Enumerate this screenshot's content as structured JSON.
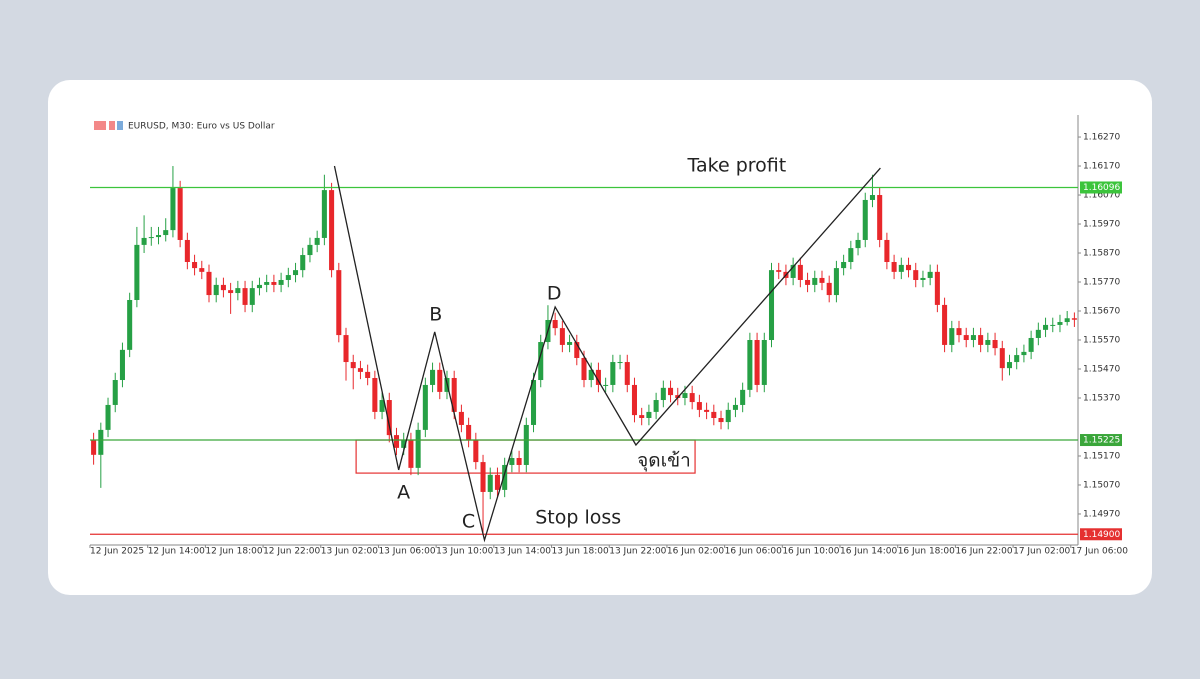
{
  "chart_data": {
    "type": "candlestick",
    "title": "EURUSD, M30:  Euro vs US Dollar",
    "categories": [
      "12 Jun 2025",
      null,
      null,
      null,
      null,
      null,
      null,
      null,
      "12 Jun 14:00",
      null,
      null,
      null,
      null,
      null,
      null,
      null,
      "12 Jun 18:00",
      null,
      null,
      null,
      null,
      null,
      null,
      null,
      "12 Jun 22:00",
      null,
      null,
      null,
      null,
      null,
      null,
      null,
      "13 Jun 02:00",
      null,
      null,
      null,
      null,
      null,
      null,
      null,
      "13 Jun 06:00",
      null,
      null,
      null,
      null,
      null,
      null,
      null,
      "13 Jun 10:00",
      null,
      null,
      null,
      null,
      null,
      null,
      null,
      "13 Jun 14:00",
      null,
      null,
      null,
      null,
      null,
      null,
      null,
      "13 Jun 18:00",
      null,
      null,
      null,
      null,
      null,
      null,
      null,
      "13 Jun 22:00",
      null,
      null,
      null,
      null,
      null,
      null,
      null,
      "16 Jun 02:00",
      null,
      null,
      null,
      null,
      null,
      null,
      null,
      "16 Jun 06:00",
      null,
      null,
      null,
      null,
      null,
      null,
      null,
      "16 Jun 10:00",
      null,
      null,
      null,
      null,
      null,
      null,
      null,
      "16 Jun 14:00",
      null,
      null,
      null,
      null,
      null,
      null,
      null,
      "16 Jun 18:00",
      null,
      null,
      null,
      null,
      null,
      null,
      null,
      "16 Jun 22:00",
      null,
      null,
      null,
      null,
      null,
      null,
      null,
      "17 Jun 02:00",
      null,
      null,
      null,
      null,
      null,
      null,
      null,
      "17 Jun 06:00"
    ],
    "open": [
      1.15225,
      1.15174,
      1.1526,
      1.15346,
      1.15432,
      1.15536,
      1.15708,
      1.15898,
      1.15922,
      1.15925,
      1.15932,
      1.15949,
      1.16094,
      1.15915,
      1.15839,
      1.15818,
      1.15805,
      1.15725,
      1.1576,
      1.15742,
      1.15732,
      1.15749,
      1.15691,
      1.15749,
      1.1576,
      1.1577,
      1.1576,
      1.15777,
      1.15794,
      1.15811,
      1.15863,
      1.15898,
      1.15922,
      1.16087,
      1.15811,
      1.15587,
      1.15494,
      1.15473,
      1.1546,
      1.15439,
      1.15322,
      1.15363,
      1.15242,
      1.15198,
      1.15225,
      1.15129,
      1.1526,
      1.15415,
      1.15467,
      1.15391,
      1.15439,
      1.15322,
      1.15277,
      1.15225,
      1.15149,
      1.15046,
      1.15105,
      1.15053,
      1.15139,
      1.15163,
      1.15139,
      1.15277,
      1.15432,
      1.15563,
      1.15639,
      1.15611,
      1.15553,
      1.15563,
      1.15508,
      1.15432,
      1.15467,
      1.15415,
      1.15415,
      1.15494,
      1.15494,
      1.15415,
      1.15311,
      1.15301,
      1.15322,
      1.15363,
      1.15405,
      1.1538,
      1.1537,
      1.15387,
      1.15356,
      1.15329,
      1.15322,
      1.15301,
      1.15287,
      1.15329,
      1.15346,
      1.15398,
      1.1557,
      1.15415,
      1.1557,
      1.15811,
      1.15805,
      1.15784,
      1.15829,
      1.15777,
      1.1576,
      1.15784,
      1.15767,
      1.15725,
      1.15818,
      1.15839,
      1.15887,
      1.15915,
      1.16053,
      1.1607,
      1.15915,
      1.15839,
      1.15805,
      1.15829,
      1.15811,
      1.15777,
      1.15784,
      1.15805,
      1.15691,
      1.15553,
      1.15611,
      1.15587,
      1.1557,
      1.15587,
      1.15553,
      1.1557,
      1.15542,
      1.15473,
      1.15494,
      1.15518,
      1.15529,
      1.15577,
      1.15605,
      1.15622,
      1.15622,
      1.15632,
      1.15645
    ],
    "high": [
      1.1525,
      1.15285,
      1.15371,
      1.15457,
      1.15561,
      1.15733,
      1.1596,
      1.16,
      1.1596,
      1.1596,
      1.1599,
      1.1617,
      1.16119,
      1.1594,
      1.15864,
      1.15843,
      1.1583,
      1.15785,
      1.15785,
      1.15767,
      1.15774,
      1.15774,
      1.15774,
      1.15785,
      1.15795,
      1.15795,
      1.15802,
      1.15819,
      1.15836,
      1.15888,
      1.15923,
      1.15947,
      1.1614,
      1.16112,
      1.15836,
      1.15612,
      1.15519,
      1.15498,
      1.15485,
      1.15464,
      1.15388,
      1.15388,
      1.15267,
      1.1525,
      1.1525,
      1.15285,
      1.1544,
      1.15492,
      1.15492,
      1.15464,
      1.15464,
      1.15347,
      1.15302,
      1.1525,
      1.15174,
      1.1513,
      1.1513,
      1.15164,
      1.15188,
      1.15188,
      1.15302,
      1.15457,
      1.15588,
      1.1569,
      1.15664,
      1.15636,
      1.15588,
      1.15588,
      1.15533,
      1.15492,
      1.15492,
      1.1544,
      1.15519,
      1.15519,
      1.15519,
      1.1544,
      1.15336,
      1.15347,
      1.15388,
      1.1543,
      1.1543,
      1.15405,
      1.15412,
      1.15412,
      1.15381,
      1.15354,
      1.15347,
      1.15326,
      1.15354,
      1.15371,
      1.15423,
      1.15595,
      1.15595,
      1.15595,
      1.15836,
      1.15836,
      1.1583,
      1.15854,
      1.15854,
      1.15802,
      1.15809,
      1.15809,
      1.15792,
      1.15843,
      1.15864,
      1.15912,
      1.1594,
      1.16078,
      1.1614,
      1.16095,
      1.1594,
      1.15864,
      1.15854,
      1.15854,
      1.15836,
      1.15809,
      1.1583,
      1.1583,
      1.15716,
      1.15636,
      1.15636,
      1.15612,
      1.15612,
      1.15612,
      1.15595,
      1.15595,
      1.15567,
      1.15519,
      1.15543,
      1.15554,
      1.15602,
      1.1563,
      1.15647,
      1.15647,
      1.15657,
      1.1567,
      1.15665
    ],
    "low": [
      1.1514,
      1.1506,
      1.15235,
      1.15321,
      1.15407,
      1.15511,
      1.15683,
      1.1587,
      1.15895,
      1.159,
      1.1591,
      1.15924,
      1.1589,
      1.15814,
      1.15793,
      1.1578,
      1.157,
      1.157,
      1.15717,
      1.1566,
      1.15707,
      1.15666,
      1.15666,
      1.15724,
      1.15735,
      1.15735,
      1.15735,
      1.15752,
      1.15769,
      1.15786,
      1.15838,
      1.15873,
      1.15897,
      1.15786,
      1.15562,
      1.1543,
      1.154,
      1.15435,
      1.15414,
      1.15297,
      1.15297,
      1.15217,
      1.15173,
      1.15173,
      1.15104,
      1.15104,
      1.15235,
      1.1539,
      1.15366,
      1.15366,
      1.15297,
      1.15252,
      1.152,
      1.15124,
      1.14905,
      1.15021,
      1.15028,
      1.15028,
      1.15114,
      1.15114,
      1.15114,
      1.15252,
      1.15407,
      1.15538,
      1.15586,
      1.15528,
      1.15528,
      1.15483,
      1.15407,
      1.15407,
      1.1539,
      1.1539,
      1.1539,
      1.15469,
      1.1539,
      1.15286,
      1.15276,
      1.15276,
      1.15297,
      1.15338,
      1.15355,
      1.15345,
      1.15345,
      1.15331,
      1.15304,
      1.15297,
      1.15276,
      1.15262,
      1.15262,
      1.15304,
      1.15321,
      1.15373,
      1.1539,
      1.1539,
      1.15545,
      1.1578,
      1.15759,
      1.15759,
      1.15752,
      1.15735,
      1.15735,
      1.15742,
      1.157,
      1.157,
      1.15793,
      1.15814,
      1.15862,
      1.1589,
      1.16028,
      1.1589,
      1.15814,
      1.1578,
      1.1578,
      1.15786,
      1.15752,
      1.15752,
      1.15759,
      1.15666,
      1.15528,
      1.15528,
      1.15562,
      1.15545,
      1.15545,
      1.15528,
      1.15528,
      1.15517,
      1.1543,
      1.15448,
      1.15469,
      1.15493,
      1.15504,
      1.15552,
      1.1558,
      1.15597,
      1.15597,
      1.1562,
      1.15615
    ],
    "close": [
      1.15174,
      1.1526,
      1.15346,
      1.15432,
      1.15536,
      1.15708,
      1.15898,
      1.15922,
      1.15925,
      1.15932,
      1.15949,
      1.16094,
      1.15915,
      1.15839,
      1.15818,
      1.15805,
      1.15725,
      1.1576,
      1.15742,
      1.15732,
      1.15749,
      1.15691,
      1.15749,
      1.1576,
      1.1577,
      1.1576,
      1.15777,
      1.15794,
      1.15811,
      1.15863,
      1.15898,
      1.15922,
      1.16087,
      1.15811,
      1.15587,
      1.15494,
      1.15473,
      1.1546,
      1.15439,
      1.15322,
      1.15363,
      1.15242,
      1.15198,
      1.15225,
      1.15129,
      1.1526,
      1.15415,
      1.15467,
      1.15391,
      1.15439,
      1.15322,
      1.15277,
      1.15225,
      1.15149,
      1.15046,
      1.15105,
      1.15053,
      1.15139,
      1.15163,
      1.15139,
      1.15277,
      1.15432,
      1.15563,
      1.15639,
      1.15611,
      1.15553,
      1.15563,
      1.15508,
      1.15432,
      1.15467,
      1.15415,
      1.15415,
      1.15494,
      1.15494,
      1.15415,
      1.15311,
      1.15301,
      1.15322,
      1.15363,
      1.15405,
      1.1538,
      1.1537,
      1.15387,
      1.15356,
      1.15329,
      1.15322,
      1.15301,
      1.15287,
      1.15329,
      1.15346,
      1.15398,
      1.1557,
      1.15415,
      1.1557,
      1.15811,
      1.15805,
      1.15784,
      1.15829,
      1.15777,
      1.1576,
      1.15784,
      1.15767,
      1.15725,
      1.15818,
      1.15839,
      1.15887,
      1.15915,
      1.16053,
      1.1607,
      1.15915,
      1.15839,
      1.15805,
      1.15829,
      1.15811,
      1.15777,
      1.15784,
      1.15805,
      1.15691,
      1.15553,
      1.15611,
      1.15587,
      1.1557,
      1.15587,
      1.15553,
      1.1557,
      1.15542,
      1.15473,
      1.15494,
      1.15518,
      1.15529,
      1.15577,
      1.15605,
      1.15622,
      1.15622,
      1.15632,
      1.15645,
      1.1564
    ],
    "up_color": "#26a045",
    "down_color": "#e8272b",
    "ylim": [
      1.14863,
      1.16346
    ],
    "yticks": [
      {
        "value": 1.1497,
        "label": "1.14970"
      },
      {
        "value": 1.1507,
        "label": "1.15070"
      },
      {
        "value": 1.1517,
        "label": "1.15170"
      },
      {
        "value": 1.1537,
        "label": "1.15370"
      },
      {
        "value": 1.1547,
        "label": "1.15470"
      },
      {
        "value": 1.1557,
        "label": "1.15570"
      },
      {
        "value": 1.1567,
        "label": "1.15670"
      },
      {
        "value": 1.1577,
        "label": "1.15770"
      },
      {
        "value": 1.1587,
        "label": "1.15870"
      },
      {
        "value": 1.1597,
        "label": "1.15970"
      },
      {
        "value": 1.1607,
        "label": "1.16070"
      },
      {
        "value": 1.1617,
        "label": "1.16170"
      },
      {
        "value": 1.1627,
        "label": "1.16270"
      }
    ],
    "grid": false,
    "levels": [
      {
        "value": 1.16096,
        "label": "1.16096",
        "color": "#3cc43c"
      },
      {
        "value": 1.15225,
        "label": "1.15225",
        "color": "#3aa63a"
      },
      {
        "value": 1.149,
        "label": "1.14900",
        "color": "#e53030"
      }
    ],
    "zone": {
      "x": [
        36.4,
        83.4
      ],
      "y": [
        1.15111,
        1.15225
      ],
      "color": "#e53030"
    },
    "pattern": {
      "x": [
        33.4,
        42.3,
        47.3,
        54.2,
        64,
        75.2,
        109.1
      ],
      "y": [
        1.1617,
        1.15122,
        1.15598,
        1.1488,
        1.15684,
        1.15208,
        1.16163
      ],
      "labels": [
        null,
        "A",
        "B",
        "C",
        "D",
        "จุดเข้า",
        null
      ]
    },
    "annotations": [
      {
        "text": "Take profit",
        "x": 89.2,
        "y": 1.1617
      },
      {
        "text": "Stop loss",
        "x": 67.2,
        "y": 1.14956
      }
    ]
  }
}
